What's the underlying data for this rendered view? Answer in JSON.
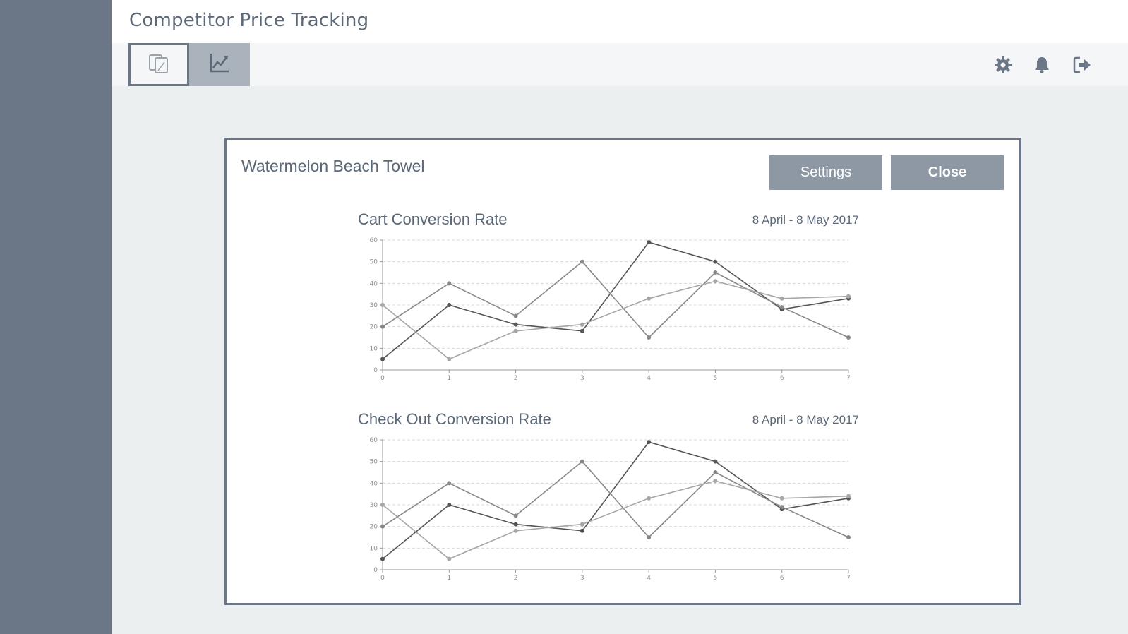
{
  "app": {
    "title": "Competitor Price Tracking"
  },
  "toolbar": {
    "views": [
      {
        "name": "compare-view",
        "icon": "copy-icon",
        "active": true
      },
      {
        "name": "chart-view",
        "icon": "line-chart-icon",
        "active": false
      }
    ],
    "icons": [
      "gear-icon",
      "bell-icon",
      "sign-out-icon"
    ]
  },
  "modal": {
    "title": "Watermelon Beach Towel",
    "settings_label": "Settings",
    "close_label": "Close"
  },
  "colors": {
    "sidebar": "#6b7787",
    "button": "#8e98a4",
    "series_dark": "#555555",
    "series_mid": "#888888",
    "series_light": "#a6a6a6"
  },
  "chart_data": [
    {
      "type": "line",
      "title": "Cart Conversion Rate",
      "subtitle": "8 April - 8 May 2017",
      "x": [
        0,
        1,
        2,
        3,
        4,
        5,
        6,
        7
      ],
      "ylim": [
        0,
        60
      ],
      "yticks": [
        0,
        10,
        20,
        30,
        40,
        50,
        60
      ],
      "grid": true,
      "series": [
        {
          "values": [
            5,
            30,
            21,
            18,
            59,
            50,
            28,
            33
          ]
        },
        {
          "values": [
            20,
            40,
            25,
            50,
            15,
            45,
            29,
            15
          ]
        },
        {
          "values": [
            30,
            5,
            18,
            21,
            33,
            41,
            33,
            34
          ]
        }
      ]
    },
    {
      "type": "line",
      "title": "Check Out Conversion Rate",
      "subtitle": "8 April - 8 May 2017",
      "x": [
        0,
        1,
        2,
        3,
        4,
        5,
        6,
        7
      ],
      "ylim": [
        0,
        60
      ],
      "yticks": [
        0,
        10,
        20,
        30,
        40,
        50,
        60
      ],
      "grid": true,
      "series": [
        {
          "values": [
            5,
            30,
            21,
            18,
            59,
            50,
            28,
            33
          ]
        },
        {
          "values": [
            20,
            40,
            25,
            50,
            15,
            45,
            29,
            15
          ]
        },
        {
          "values": [
            30,
            5,
            18,
            21,
            33,
            41,
            33,
            34
          ]
        }
      ]
    }
  ]
}
